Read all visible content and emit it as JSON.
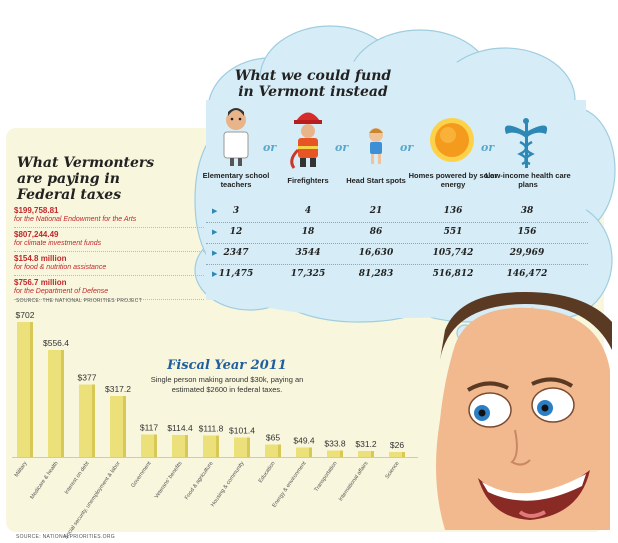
{
  "cloud_title": "What we could fund in Vermont instead",
  "left_title": "What Vermonters are paying in Federal taxes",
  "funds": [
    {
      "amount": "$199,758.81",
      "desc": "for the National Endowment for the Arts"
    },
    {
      "amount": "$807,244.49",
      "desc": "for climate investment funds"
    },
    {
      "amount": "$154.8 million",
      "desc": "for food & nutrition assistance"
    },
    {
      "amount": "$756.7 million",
      "desc": "for the Department of Defense"
    }
  ],
  "source_top": "SOURCE: THE NATIONAL PRIORITIES PROJECT",
  "source_bottom": "SOURCE: NATIONALPRIORITIES.ORG",
  "or_word": "or",
  "columns": [
    {
      "label": "Elementary school teachers",
      "icon": "teacher-icon"
    },
    {
      "label": "Firefighters",
      "icon": "firefighter-icon"
    },
    {
      "label": "Head Start spots",
      "icon": "child-icon"
    },
    {
      "label": "Homes powered by solar energy",
      "icon": "sun-icon"
    },
    {
      "label": "Low-income health care plans",
      "icon": "caduceus-icon"
    }
  ],
  "table_rows": [
    [
      "3",
      "4",
      "21",
      "136",
      "38"
    ],
    [
      "12",
      "18",
      "86",
      "551",
      "156"
    ],
    [
      "2347",
      "3544",
      "16,630",
      "105,742",
      "29,969"
    ],
    [
      "11,475",
      "17,325",
      "81,283",
      "516,812",
      "146,472"
    ]
  ],
  "fiscal_title": "Fiscal Year 2011",
  "fiscal_sub": "Single person making around $30k, paying an estimated $2600 in federal taxes.",
  "colors": {
    "bar": "#ece07a",
    "bar_shade": "#d8c957",
    "panel": "#f8f6dc",
    "cloud": "#d6edf7",
    "red": "#c2272d",
    "blue": "#1f5fa0"
  },
  "chart_data": {
    "type": "bar",
    "title": "Fiscal Year 2011",
    "subtitle": "Single person making around $30k, paying an estimated $2600 in federal taxes.",
    "categories": [
      "Military",
      "Medicare & health",
      "Interest on debt",
      "Social security, unemployment & labor",
      "Government",
      "Veterans' benefits",
      "Food & agriculture",
      "Housing & community",
      "Education",
      "Energy & environment",
      "Transportation",
      "International affairs",
      "Science"
    ],
    "labels": [
      "$702",
      "$556.4",
      "$377",
      "$317.2",
      "$117",
      "$114.4",
      "$111.8",
      "$101.4",
      "$65",
      "$49.4",
      "$33.8",
      "$31.2",
      "$26"
    ],
    "values": [
      702,
      556.4,
      377,
      317.2,
      117,
      114.4,
      111.8,
      101.4,
      65,
      49.4,
      33.8,
      31.2,
      26
    ],
    "ylim": [
      0,
      702
    ],
    "xlabel": "",
    "ylabel": ""
  }
}
